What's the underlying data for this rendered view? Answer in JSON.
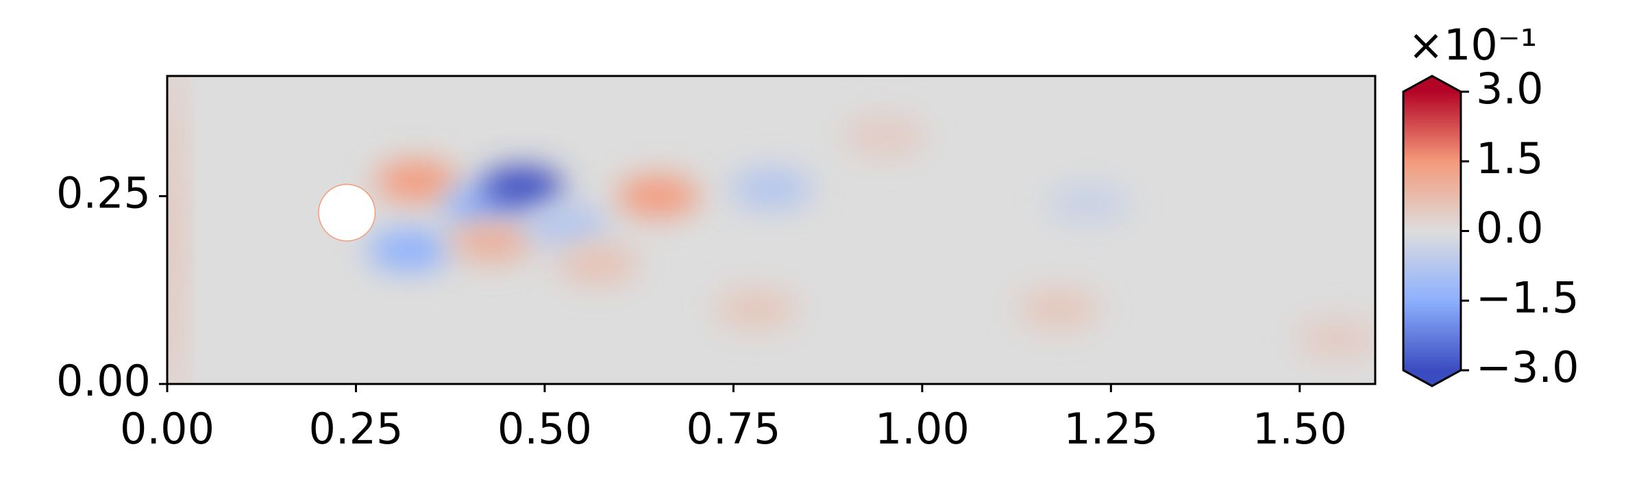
{
  "chart_data": {
    "type": "field",
    "xlim": [
      0,
      1.6
    ],
    "ylim": [
      0,
      0.41
    ],
    "xticks": [
      {
        "value": 0,
        "label": "0.00"
      },
      {
        "value": 0.25,
        "label": "0.25"
      },
      {
        "value": 0.5,
        "label": "0.50"
      },
      {
        "value": 0.75,
        "label": "0.75"
      },
      {
        "value": 1.0,
        "label": "1.00"
      },
      {
        "value": 1.25,
        "label": "1.25"
      },
      {
        "value": 1.5,
        "label": "1.50"
      }
    ],
    "yticks": [
      {
        "value": 0,
        "label": "0.00"
      },
      {
        "value": 0.25,
        "label": "0.25"
      }
    ],
    "colormap": "coolwarm",
    "clim": [
      -3,
      3
    ],
    "cticks": [
      {
        "value": -3,
        "label": "−3.0"
      },
      {
        "value": -1.5,
        "label": "−1.5"
      },
      {
        "value": 0,
        "label": "0.0"
      },
      {
        "value": 1.5,
        "label": "1.5"
      },
      {
        "value": 3,
        "label": "3.0"
      }
    ],
    "colorbar_offset": "×10⁻¹",
    "colorbar_extend": "both",
    "cylinder": {
      "x": 0.238,
      "y": 0.228,
      "r": 0.0375
    },
    "features": [
      {
        "x": 0.005,
        "y": 0.2,
        "value": 0.8
      },
      {
        "x": 0.33,
        "y": 0.27,
        "value": 1.5
      },
      {
        "x": 0.32,
        "y": 0.178,
        "value": -1.5
      },
      {
        "x": 0.42,
        "y": 0.235,
        "value": -1.5
      },
      {
        "x": 0.47,
        "y": 0.262,
        "value": -3.0
      },
      {
        "x": 0.43,
        "y": 0.19,
        "value": 1.0
      },
      {
        "x": 0.53,
        "y": 0.21,
        "value": -0.8
      },
      {
        "x": 0.65,
        "y": 0.25,
        "value": 1.5
      },
      {
        "x": 0.57,
        "y": 0.16,
        "value": 0.6
      },
      {
        "x": 0.8,
        "y": 0.26,
        "value": -0.8
      },
      {
        "x": 0.78,
        "y": 0.1,
        "value": 0.5
      },
      {
        "x": 0.95,
        "y": 0.33,
        "value": 0.4
      },
      {
        "x": 1.22,
        "y": 0.24,
        "value": -0.4
      },
      {
        "x": 1.18,
        "y": 0.1,
        "value": 0.5
      },
      {
        "x": 1.55,
        "y": 0.06,
        "value": 0.4
      }
    ]
  }
}
